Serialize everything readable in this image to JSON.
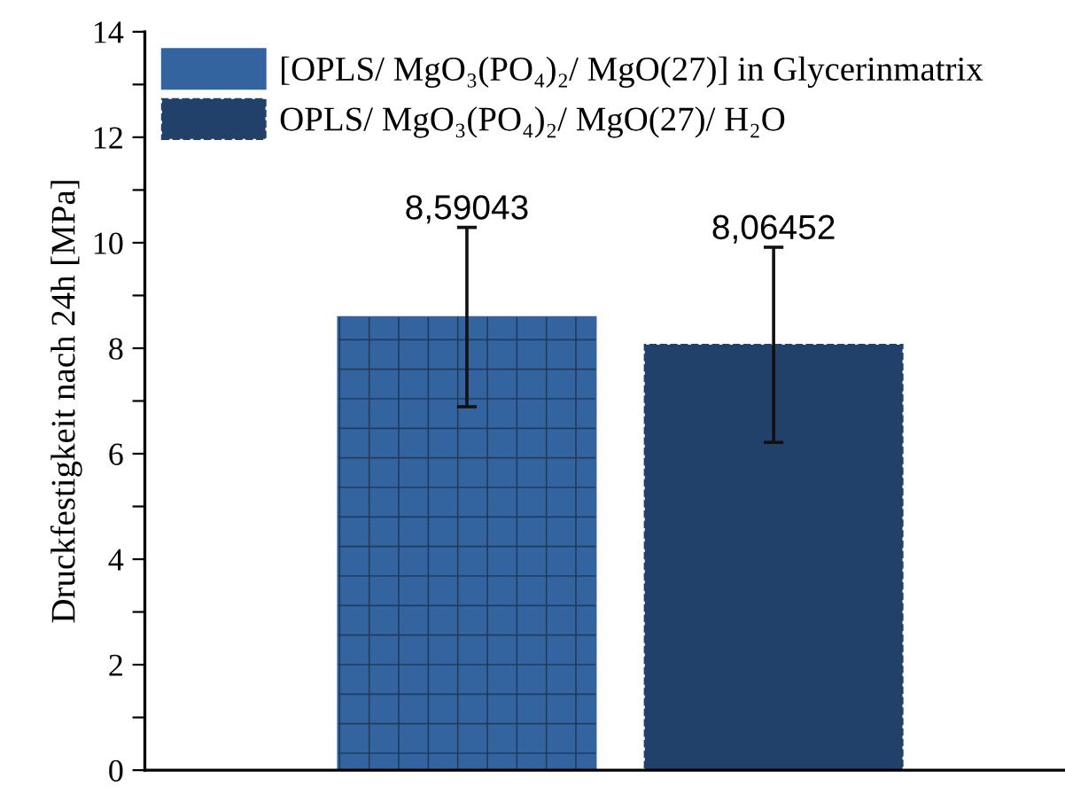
{
  "chart_data": {
    "type": "bar",
    "ylabel": "Druckfestigkeit nach 24h [MPa]",
    "categories": [
      null,
      null
    ],
    "series": [
      {
        "name": "[OPLS/ MgO₃(PO₄)₂/ MgO(27)] in Glycerinmatrix",
        "color": "#3464a0",
        "values": [
          8.59043,
          null
        ],
        "errors": [
          1.7,
          null
        ],
        "value_labels": [
          "8,59043",
          null
        ]
      },
      {
        "name": "OPLS/ MgO₃(PO₄)₂/ MgO(27)/ H₂O",
        "color": "#21416b",
        "values": [
          null,
          8.06452
        ],
        "errors": [
          null,
          1.85
        ],
        "value_labels": [
          null,
          "8,06452"
        ]
      }
    ],
    "ylim": [
      0,
      14
    ],
    "yticks": [
      0,
      {
        "value": 1,
        "label": null
      },
      2,
      {
        "value": 3,
        "label": null
      },
      4,
      {
        "value": 5,
        "label": null
      },
      6,
      {
        "value": 7,
        "label": null
      },
      8,
      {
        "value": 9,
        "label": null
      },
      10,
      {
        "value": 11,
        "label": null
      },
      12,
      {
        "value": 13,
        "label": null
      },
      14
    ],
    "tick_labels": "y",
    "grid": false,
    "legend": "top left"
  }
}
